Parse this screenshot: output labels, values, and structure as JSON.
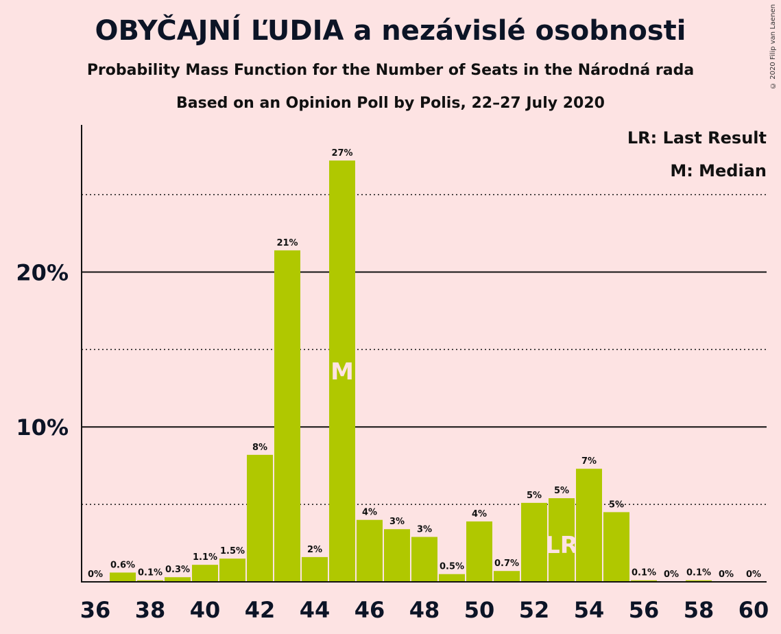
{
  "title": "OBYČAJNÍ ĽUDIA a nezávislé osobnosti",
  "subtitle1": "Probability Mass Function for the Number of Seats in the Národná rada",
  "subtitle2": "Based on an Opinion Poll by Polis, 22–27 July 2020",
  "copyright": "© 2020 Filip van Laenen",
  "legend": {
    "lr": "LR: Last Result",
    "m": "M: Median"
  },
  "colors": {
    "background": "#fde3e3",
    "bar": "#b0c800",
    "axis": "#111111"
  },
  "chart_data": {
    "type": "bar",
    "x": [
      36,
      37,
      38,
      39,
      40,
      41,
      42,
      43,
      44,
      45,
      46,
      47,
      48,
      49,
      50,
      51,
      52,
      53,
      54,
      55,
      56,
      57,
      58,
      59,
      60
    ],
    "values": [
      0,
      0.6,
      0.1,
      0.3,
      1.1,
      1.5,
      8.2,
      21.4,
      1.6,
      27.2,
      4.0,
      3.4,
      2.9,
      0.5,
      3.9,
      0.7,
      5.1,
      5.4,
      7.3,
      4.5,
      0.1,
      0,
      0.1,
      0,
      0
    ],
    "labels": [
      "0%",
      "0.6%",
      "0.1%",
      "0.3%",
      "1.1%",
      "1.5%",
      "8%",
      "21%",
      "2%",
      "27%",
      "4%",
      "3%",
      "3%",
      "0.5%",
      "4%",
      "0.7%",
      "5%",
      "5%",
      "7%",
      "5%",
      "0.1%",
      "0%",
      "0.1%",
      "0%",
      "0%"
    ],
    "xticks": [
      "36",
      "38",
      "40",
      "42",
      "44",
      "46",
      "48",
      "50",
      "52",
      "54",
      "56",
      "58",
      "60"
    ],
    "yticks": [
      "10%",
      "20%"
    ],
    "ylim": [
      0,
      29.5
    ],
    "median": 45,
    "median_label": "M",
    "last_result": 53,
    "last_result_label": "LR",
    "grid_solid": [
      10,
      20
    ],
    "grid_dotted": [
      5,
      15,
      25
    ],
    "legend_position": "top-right"
  }
}
